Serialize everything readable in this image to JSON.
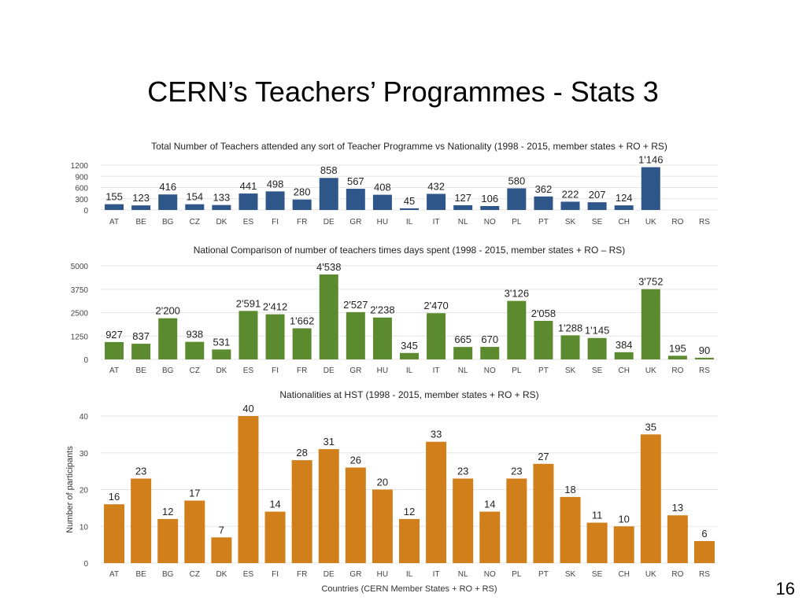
{
  "slide": {
    "title": "CERN’s Teachers’ Programmes - Stats 3",
    "page_number": "16"
  },
  "colors": {
    "blue": "#2f5689",
    "green": "#5b8b2e",
    "orange": "#d17f1a"
  },
  "chart_data": [
    {
      "type": "bar",
      "title": "Total Number of Teachers attended any sort of Teacher Programme vs Nationality (1998 - 2015, member states + RO + RS)",
      "categories": [
        "AT",
        "BE",
        "BG",
        "CZ",
        "DK",
        "ES",
        "FI",
        "FR",
        "DE",
        "GR",
        "HU",
        "IL",
        "IT",
        "NL",
        "NO",
        "PL",
        "PT",
        "SK",
        "SE",
        "CH",
        "UK",
        "RO",
        "RS"
      ],
      "values": [
        155,
        123,
        416,
        154,
        133,
        441,
        498,
        280,
        858,
        567,
        408,
        45,
        432,
        127,
        106,
        580,
        362,
        222,
        207,
        124,
        1146,
        null,
        null
      ],
      "labels": [
        "155",
        "123",
        "416",
        "154",
        "133",
        "441",
        "498",
        "280",
        "858",
        "567",
        "408",
        "45",
        "432",
        "127",
        "106",
        "580",
        "362",
        "222",
        "207",
        "124",
        "1'146",
        "",
        ""
      ],
      "yticks": [
        "1200",
        "900",
        "600",
        "300",
        "0"
      ],
      "ytick_values": [
        1200,
        900,
        600,
        300,
        0
      ],
      "ylim": [
        0,
        1200
      ],
      "xlabel": "",
      "ylabel": "",
      "color": "#2f5689",
      "grid": true
    },
    {
      "type": "bar",
      "title": "National Comparison of number of teachers times days spent (1998 - 2015, member states + RO – RS)",
      "categories": [
        "AT",
        "BE",
        "BG",
        "CZ",
        "DK",
        "ES",
        "FI",
        "FR",
        "DE",
        "GR",
        "HU",
        "IL",
        "IT",
        "NL",
        "NO",
        "PL",
        "PT",
        "SK",
        "SE",
        "CH",
        "UK",
        "RO",
        "RS"
      ],
      "values": [
        927,
        837,
        2200,
        938,
        531,
        2591,
        2412,
        1662,
        4538,
        2527,
        2238,
        345,
        2470,
        665,
        670,
        3126,
        2058,
        1288,
        1145,
        384,
        3752,
        195,
        90
      ],
      "labels": [
        "927",
        "837",
        "2'200",
        "938",
        "531",
        "2'591",
        "2'412",
        "1'662",
        "4'538",
        "2'527",
        "2'238",
        "345",
        "2'470",
        "665",
        "670",
        "3'126",
        "2'058",
        "1'288",
        "1'145",
        "384",
        "3'752",
        "195",
        "90"
      ],
      "yticks": [
        "5000",
        "3750",
        "2500",
        "1250",
        "0"
      ],
      "ytick_values": [
        5000,
        3750,
        2500,
        1250,
        0
      ],
      "ylim": [
        0,
        5000
      ],
      "xlabel": "",
      "ylabel": "",
      "color": "#5b8b2e",
      "grid": true
    },
    {
      "type": "bar",
      "title": "Nationalities at HST (1998 - 2015, member states + RO + RS)",
      "categories": [
        "AT",
        "BE",
        "BG",
        "CZ",
        "DK",
        "ES",
        "FI",
        "FR",
        "DE",
        "GR",
        "HU",
        "IL",
        "IT",
        "NL",
        "NO",
        "PL",
        "PT",
        "SK",
        "SE",
        "CH",
        "UK",
        "RO",
        "RS"
      ],
      "values": [
        16,
        23,
        12,
        17,
        7,
        40,
        14,
        28,
        31,
        26,
        20,
        12,
        33,
        23,
        14,
        23,
        27,
        18,
        11,
        10,
        35,
        13,
        6
      ],
      "labels": [
        "16",
        "23",
        "12",
        "17",
        "7",
        "40",
        "14",
        "28",
        "31",
        "26",
        "20",
        "12",
        "33",
        "23",
        "14",
        "23",
        "27",
        "18",
        "11",
        "10",
        "35",
        "13",
        "6"
      ],
      "yticks": [
        "40",
        "30",
        "20",
        "10",
        "0"
      ],
      "ytick_values": [
        40,
        30,
        20,
        10,
        0
      ],
      "ylim": [
        0,
        40
      ],
      "xlabel": "Countries (CERN Member States + RO + RS)",
      "ylabel": "Number of participants",
      "color": "#d17f1a",
      "grid": true
    }
  ]
}
